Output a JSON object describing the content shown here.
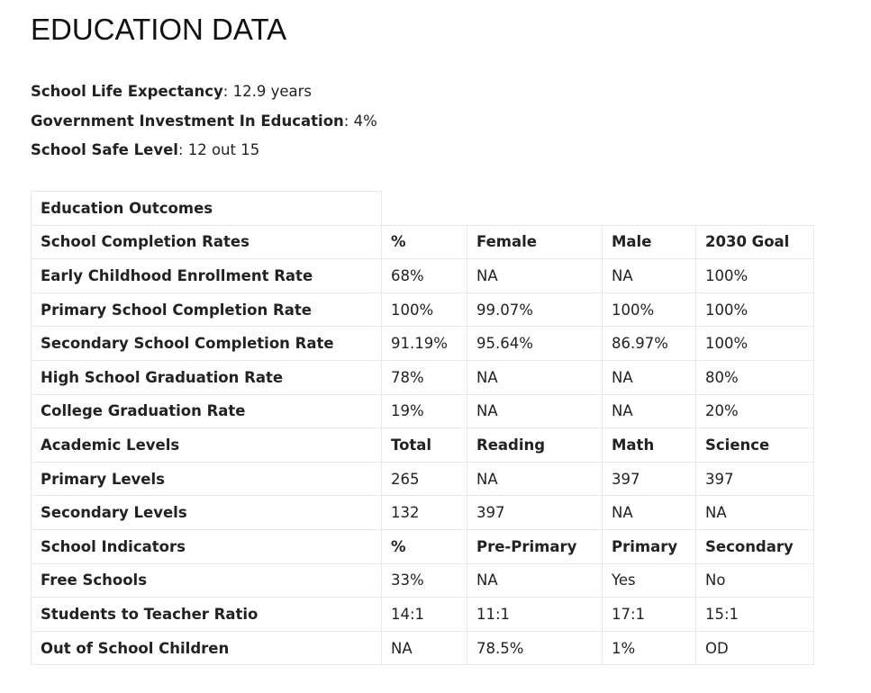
{
  "title": "EDUCATION DATA",
  "facts": [
    {
      "label": "School Life Expectancy",
      "value": ": 12.9 years"
    },
    {
      "label": "Government Investment In Education",
      "value": ": 4%"
    },
    {
      "label": "School Safe Level",
      "value": ": 12 out 15"
    }
  ],
  "table": {
    "caption": "Education Outcomes",
    "rows": [
      {
        "header": true,
        "cells": [
          "School Completion Rates",
          "%",
          "Female",
          "Male",
          "2030 Goal"
        ]
      },
      {
        "header": false,
        "cells": [
          "Early Childhood Enrollment Rate",
          "68%",
          "NA",
          "NA",
          "100%"
        ]
      },
      {
        "header": false,
        "cells": [
          "Primary School Completion Rate",
          "100%",
          "99.07%",
          "100%",
          "100%"
        ]
      },
      {
        "header": false,
        "cells": [
          "Secondary School Completion Rate",
          "91.19%",
          "95.64%",
          "86.97%",
          "100%"
        ]
      },
      {
        "header": false,
        "cells": [
          "High School Graduation Rate",
          "78%",
          "NA",
          "NA",
          "80%"
        ]
      },
      {
        "header": false,
        "cells": [
          "College Graduation Rate",
          "19%",
          "NA",
          "NA",
          "20%"
        ]
      },
      {
        "header": true,
        "cells": [
          "Academic Levels",
          "Total",
          "Reading",
          "Math",
          "Science"
        ]
      },
      {
        "header": false,
        "cells": [
          "Primary Levels",
          "265",
          "NA",
          "397",
          "397"
        ]
      },
      {
        "header": false,
        "cells": [
          "Secondary Levels",
          "132",
          "397",
          "NA",
          "NA"
        ]
      },
      {
        "header": true,
        "cells": [
          "School Indicators",
          "%",
          "Pre-Primary",
          "Primary",
          "Secondary"
        ]
      },
      {
        "header": false,
        "cells": [
          "Free Schools",
          "33%",
          "NA",
          "Yes",
          "No"
        ]
      },
      {
        "header": false,
        "cells": [
          "Students to Teacher Ratio",
          "14:1",
          "11:1",
          "17:1",
          "15:1"
        ]
      },
      {
        "header": false,
        "cells": [
          "Out of School Children",
          "NA",
          "78.5%",
          "1%",
          "OD"
        ]
      }
    ]
  }
}
